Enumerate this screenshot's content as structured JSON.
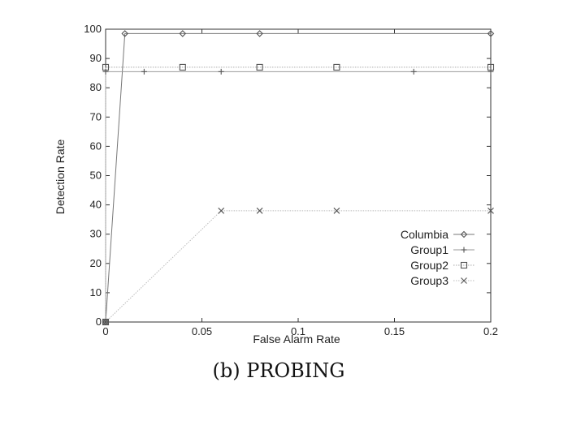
{
  "chart_data": {
    "type": "line",
    "xlabel": "False Alarm Rate",
    "ylabel": "Detection Rate",
    "caption": "(b) PROBING",
    "xlim": [
      0,
      0.2
    ],
    "ylim": [
      0,
      100
    ],
    "xticks": [
      "0",
      "0.05",
      "0.1",
      "0.15",
      "0.2"
    ],
    "yticks": [
      "0",
      "10",
      "20",
      "30",
      "40",
      "50",
      "60",
      "70",
      "80",
      "90",
      "100"
    ],
    "grid": false,
    "legend_position": "right",
    "series": [
      {
        "name": "Columbia",
        "marker": "diamond",
        "line": "solid",
        "color": "#777777",
        "points": [
          [
            0,
            0
          ],
          [
            0.01,
            98.5
          ],
          [
            0.04,
            98.5
          ],
          [
            0.08,
            98.5
          ],
          [
            0.2,
            98.5
          ]
        ]
      },
      {
        "name": "Group1",
        "marker": "plus",
        "line": "solid",
        "color": "#999999",
        "points": [
          [
            0,
            0
          ],
          [
            0,
            85.5
          ],
          [
            0.02,
            85.5
          ],
          [
            0.06,
            85.5
          ],
          [
            0.16,
            85.5
          ],
          [
            0.2,
            85.5
          ]
        ]
      },
      {
        "name": "Group2",
        "marker": "square",
        "line": "dotted",
        "color": "#aaaaaa",
        "points": [
          [
            0,
            0
          ],
          [
            0,
            87
          ],
          [
            0.04,
            87
          ],
          [
            0.08,
            87
          ],
          [
            0.12,
            87
          ],
          [
            0.2,
            87
          ]
        ]
      },
      {
        "name": "Group3",
        "marker": "x",
        "line": "dotted",
        "color": "#bbbbbb",
        "points": [
          [
            0,
            0
          ],
          [
            0.06,
            38
          ],
          [
            0.08,
            38
          ],
          [
            0.12,
            38
          ],
          [
            0.2,
            38
          ]
        ]
      }
    ]
  }
}
